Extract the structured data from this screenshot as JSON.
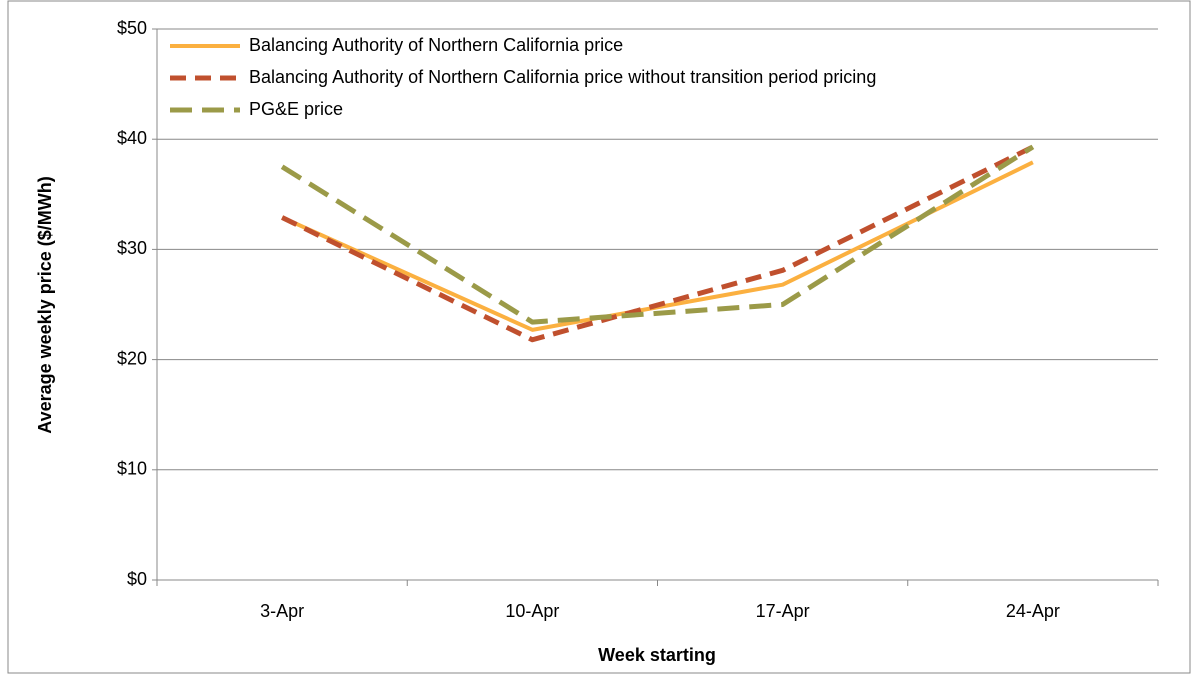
{
  "chart_data": {
    "type": "line",
    "x_label": "Week starting",
    "y_label": "Average weekly price ($/MWh)",
    "categories": [
      "3-Apr",
      "10-Apr",
      "17-Apr",
      "24-Apr"
    ],
    "series": [
      {
        "name": "Balancing Authority of Northern California price",
        "color": "#fbb040",
        "dash": "solid",
        "values": [
          32.9,
          22.7,
          26.8,
          37.9
        ]
      },
      {
        "name": "Balancing Authority of Northern California price without transition period pricing",
        "color": "#c0502e",
        "dash": "dashed",
        "values": [
          32.9,
          21.8,
          28.1,
          39.3
        ]
      },
      {
        "name": "PG&E price",
        "color": "#9b9a48",
        "dash": "dashed",
        "values": [
          37.5,
          23.4,
          25.0,
          39.3
        ]
      }
    ],
    "ylim": [
      0,
      50
    ],
    "yticks": [
      {
        "value": 0,
        "label": "$0"
      },
      {
        "value": 10,
        "label": "$10"
      },
      {
        "value": 20,
        "label": "$20"
      },
      {
        "value": 30,
        "label": "$30"
      },
      {
        "value": 40,
        "label": "$40"
      },
      {
        "value": 50,
        "label": "$50"
      }
    ],
    "grid": true,
    "legend": "upper-left"
  }
}
